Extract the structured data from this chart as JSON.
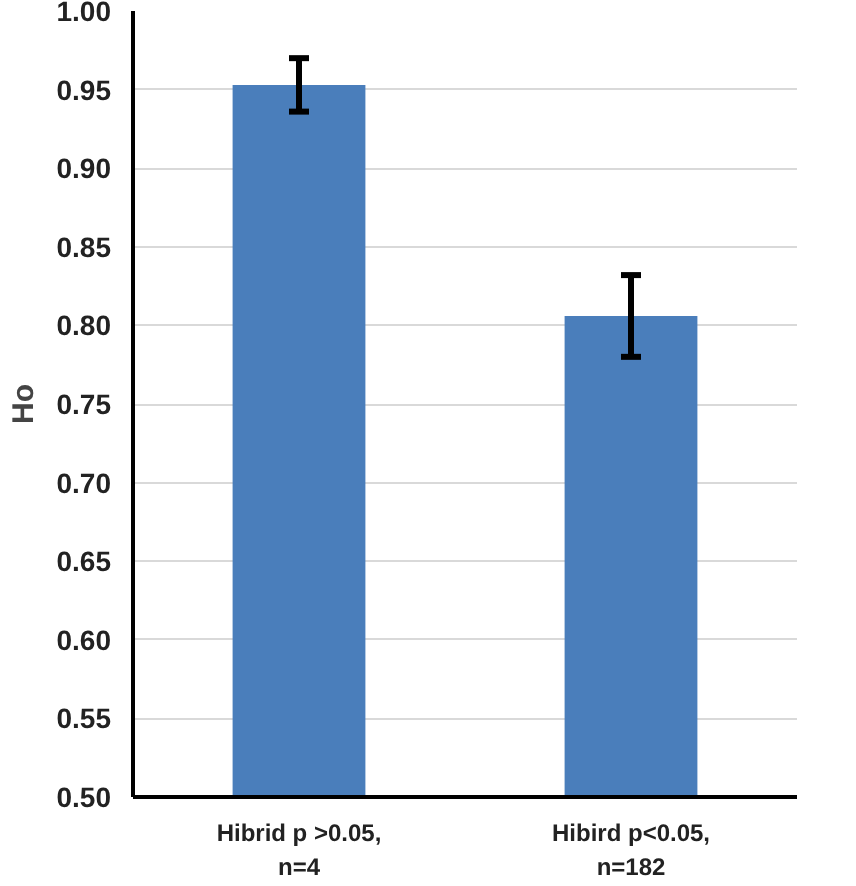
{
  "chart_data": {
    "type": "bar",
    "ylabel": "Ho",
    "categories": [
      "Hibrid p >0.05,\nn=4",
      "Hibird p<0.05,\nn=182"
    ],
    "values": [
      0.953,
      0.806
    ],
    "color": "#4a7ebb",
    "errors": [
      0.017,
      0.026
    ],
    "ylim": [
      0.5,
      1.0
    ],
    "yticks": [
      {
        "value": 0.5,
        "label": "0.50"
      },
      {
        "value": 0.55,
        "label": "0.55"
      },
      {
        "value": 0.6,
        "label": "0.60"
      },
      {
        "value": 0.65,
        "label": "0.65"
      },
      {
        "value": 0.7,
        "label": "0.70"
      },
      {
        "value": 0.75,
        "label": "0.75"
      },
      {
        "value": 0.8,
        "label": "0.80"
      },
      {
        "value": 0.85,
        "label": "0.85"
      },
      {
        "value": 0.9,
        "label": "0.90"
      },
      {
        "value": 0.95,
        "label": "0.95"
      },
      {
        "value": 1.0,
        "label": "1.00"
      }
    ],
    "grid": "y"
  }
}
